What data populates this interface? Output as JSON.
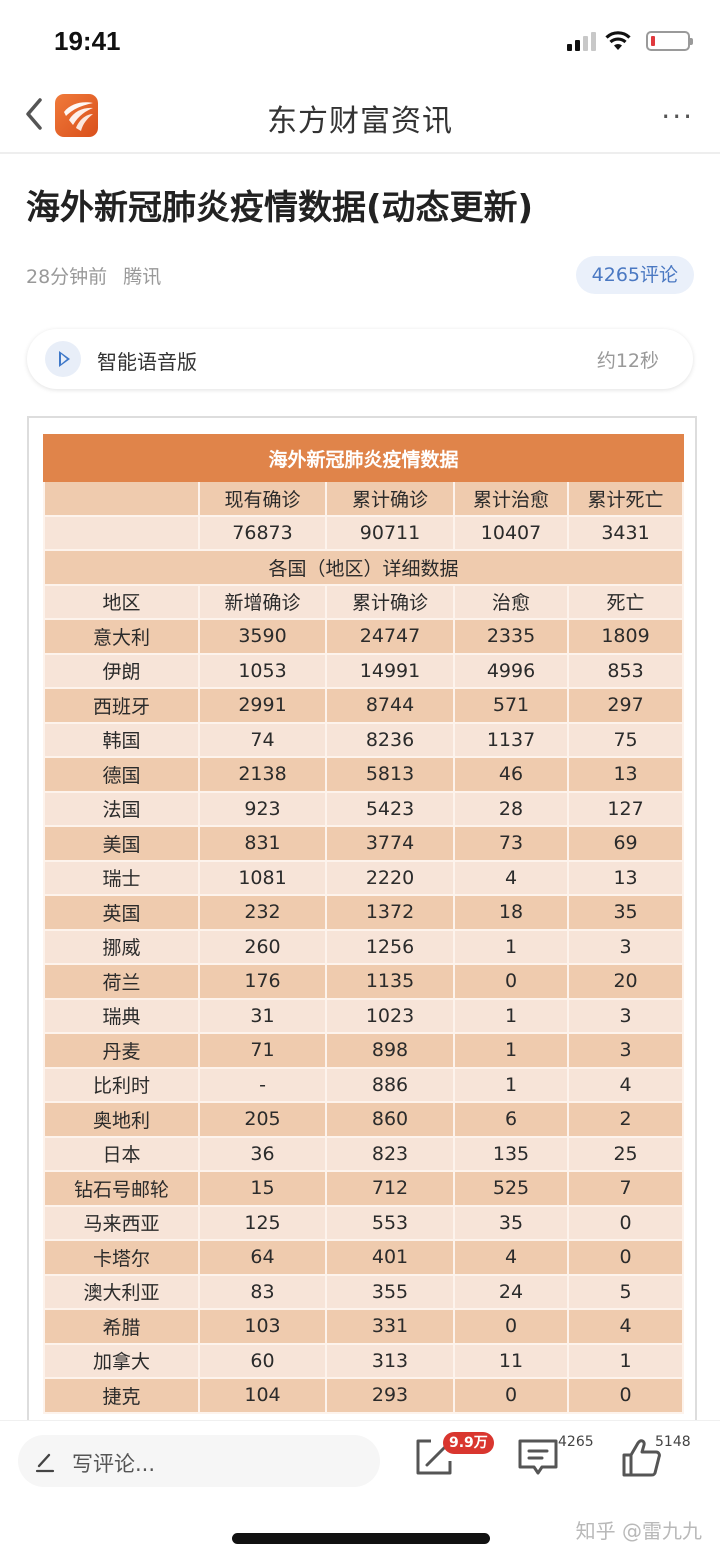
{
  "status_bar": {
    "time": "19:41"
  },
  "nav": {
    "title": "东方财富资讯",
    "more": "···"
  },
  "article": {
    "title": "海外新冠肺炎疫情数据(动态更新)",
    "time_ago": "28分钟前",
    "source": "腾讯",
    "comment_pill": "4265评论"
  },
  "audio": {
    "label": "智能语音版",
    "duration": "约12秒"
  },
  "table": {
    "title": "海外新冠肺炎疫情数据",
    "summary_headers": [
      "",
      "现有确诊",
      "累计确诊",
      "累计治愈",
      "累计死亡"
    ],
    "summary_values": [
      "",
      "76873",
      "90711",
      "10407",
      "3431"
    ],
    "section_title": "各国（地区）详细数据",
    "detail_headers": [
      "地区",
      "新增确诊",
      "累计确诊",
      "治愈",
      "死亡"
    ],
    "rows": [
      [
        "意大利",
        "3590",
        "24747",
        "2335",
        "1809"
      ],
      [
        "伊朗",
        "1053",
        "14991",
        "4996",
        "853"
      ],
      [
        "西班牙",
        "2991",
        "8744",
        "571",
        "297"
      ],
      [
        "韩国",
        "74",
        "8236",
        "1137",
        "75"
      ],
      [
        "德国",
        "2138",
        "5813",
        "46",
        "13"
      ],
      [
        "法国",
        "923",
        "5423",
        "28",
        "127"
      ],
      [
        "美国",
        "831",
        "3774",
        "73",
        "69"
      ],
      [
        "瑞士",
        "1081",
        "2220",
        "4",
        "13"
      ],
      [
        "英国",
        "232",
        "1372",
        "18",
        "35"
      ],
      [
        "挪威",
        "260",
        "1256",
        "1",
        "3"
      ],
      [
        "荷兰",
        "176",
        "1135",
        "0",
        "20"
      ],
      [
        "瑞典",
        "31",
        "1023",
        "1",
        "3"
      ],
      [
        "丹麦",
        "71",
        "898",
        "1",
        "3"
      ],
      [
        "比利时",
        "-",
        "886",
        "1",
        "4"
      ],
      [
        "奥地利",
        "205",
        "860",
        "6",
        "2"
      ],
      [
        "日本",
        "36",
        "823",
        "135",
        "25"
      ],
      [
        "钻石号邮轮",
        "15",
        "712",
        "525",
        "7"
      ],
      [
        "马来西亚",
        "125",
        "553",
        "35",
        "0"
      ],
      [
        "卡塔尔",
        "64",
        "401",
        "4",
        "0"
      ],
      [
        "澳大利亚",
        "83",
        "355",
        "24",
        "5"
      ],
      [
        "希腊",
        "103",
        "331",
        "0",
        "4"
      ],
      [
        "加拿大",
        "60",
        "313",
        "11",
        "1"
      ],
      [
        "捷克",
        "104",
        "293",
        "0",
        "0"
      ]
    ],
    "colors": {
      "title_bg": "#e0844a",
      "dark_row": "#efcbae",
      "light_row": "#f7e4d8"
    }
  },
  "bottom_bar": {
    "comment_placeholder": "写评论...",
    "share_badge": "9.9万",
    "comment_count": "4265",
    "like_count": "5148"
  },
  "watermark": "知乎 @雷九九"
}
